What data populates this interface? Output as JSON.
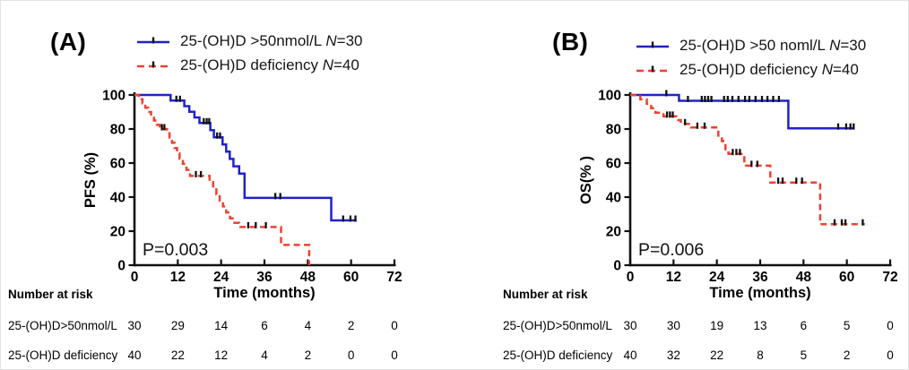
{
  "colors": {
    "blue": "#2121c8",
    "red": "#ee4130",
    "axis": "#111111",
    "censor": "#101010"
  },
  "chart_data": [
    {
      "type": "line",
      "panel_label": "(A)",
      "p_value": "P=0.003",
      "xlabel": "Time (months)",
      "ylabel": "PFS (%)",
      "xlim": [
        0,
        72
      ],
      "ylim": [
        0,
        100
      ],
      "x_ticks": [
        0,
        12,
        24,
        36,
        48,
        60,
        72
      ],
      "y_ticks": [
        0,
        20,
        40,
        60,
        80,
        100
      ],
      "legend": [
        {
          "label": "25-(OH)D >50nmol/L",
          "n_var": "N",
          "n_value": "=30",
          "color": "#2121c8",
          "dashed": false
        },
        {
          "label": "25-(OH)D deficiency",
          "n_var": "N",
          "n_value": "=40",
          "color": "#ee4130",
          "dashed": true
        }
      ],
      "series": [
        {
          "name": "25-(OH)D >50nmol/L",
          "color": "#2121c8",
          "dashed": false,
          "start": [
            0,
            100
          ],
          "steps": [
            [
              10,
              96.7
            ],
            [
              13.8,
              93.4
            ],
            [
              15.2,
              90.1
            ],
            [
              16.6,
              86.8
            ],
            [
              18,
              83.5
            ],
            [
              21,
              79.3
            ],
            [
              22,
              75.1
            ],
            [
              24.4,
              70.9
            ],
            [
              25.4,
              66.7
            ],
            [
              26.4,
              62.4
            ],
            [
              27.4,
              58.1
            ],
            [
              29,
              53.8
            ],
            [
              30.5,
              39.5
            ],
            [
              54.5,
              26.3
            ]
          ],
          "end": 61.5,
          "censors": [
            [
              11.6,
              96.7
            ],
            [
              12.6,
              96.7
            ],
            [
              19.2,
              83.5
            ],
            [
              20,
              83.5
            ],
            [
              20.7,
              83.5
            ],
            [
              22.9,
              75.1
            ],
            [
              23.7,
              75.1
            ],
            [
              39,
              39.5
            ],
            [
              40.4,
              39.5
            ],
            [
              57.8,
              26.3
            ],
            [
              59.8,
              26.3
            ],
            [
              61.2,
              26.3
            ]
          ]
        },
        {
          "name": "25-(OH)D deficiency",
          "color": "#ee4130",
          "dashed": true,
          "start": [
            0,
            100
          ],
          "steps": [
            [
              1.2,
              97.5
            ],
            [
              2.2,
              95
            ],
            [
              3,
              92.5
            ],
            [
              3.8,
              90
            ],
            [
              4.6,
              87.5
            ],
            [
              5.4,
              85
            ],
            [
              6.2,
              82.5
            ],
            [
              7,
              80
            ],
            [
              9,
              77.5
            ],
            [
              9.7,
              75
            ],
            [
              10.4,
              71.9
            ],
            [
              11.1,
              68.8
            ],
            [
              11.8,
              65.7
            ],
            [
              12.5,
              62.6
            ],
            [
              13.4,
              59.5
            ],
            [
              14.4,
              56
            ],
            [
              15.4,
              52.4
            ],
            [
              20.8,
              48.8
            ],
            [
              21.8,
              45.2
            ],
            [
              22.7,
              41.6
            ],
            [
              23.6,
              38
            ],
            [
              24.5,
              34.5
            ],
            [
              25.4,
              31
            ],
            [
              26.5,
              27.5
            ],
            [
              27.7,
              24.9
            ],
            [
              29,
              22.4
            ],
            [
              40.6,
              11.9
            ],
            [
              48.4,
              0
            ]
          ],
          "end": 48.4,
          "censors": [
            [
              7.6,
              80
            ],
            [
              8.3,
              80
            ],
            [
              17,
              52.4
            ],
            [
              18.4,
              52.4
            ],
            [
              31.5,
              22.4
            ],
            [
              33.6,
              22.4
            ],
            [
              36.4,
              22.4
            ]
          ]
        }
      ],
      "risk_table": {
        "title": "Number at risk",
        "rows": [
          {
            "label": "25-(OH)D>50nmol/L",
            "counts": [
              30,
              29,
              14,
              6,
              4,
              2,
              0
            ]
          },
          {
            "label": "25-(OH)D deficiency",
            "counts": [
              40,
              22,
              12,
              4,
              2,
              0,
              0
            ]
          }
        ]
      }
    },
    {
      "type": "line",
      "panel_label": "(B)",
      "p_value": "P=0.006",
      "xlabel": "Time (months)",
      "ylabel": "OS(% )",
      "xlim": [
        0,
        72
      ],
      "ylim": [
        0,
        100
      ],
      "x_ticks": [
        0,
        12,
        24,
        36,
        48,
        60,
        72
      ],
      "y_ticks": [
        0,
        20,
        40,
        60,
        80,
        100
      ],
      "legend": [
        {
          "label": "25-(OH)D >50 noml/L",
          "n_var": "N",
          "n_value": "=30",
          "color": "#2121c8",
          "dashed": false
        },
        {
          "label": "25-(OH)D deficiency",
          "n_var": "N",
          "n_value": "=40",
          "color": "#ee4130",
          "dashed": true
        }
      ],
      "series": [
        {
          "name": "25-(OH)D >50 noml/L",
          "color": "#2121c8",
          "dashed": false,
          "start": [
            0,
            100
          ],
          "steps": [
            [
              13.5,
              96.6
            ],
            [
              43.8,
              80.4
            ]
          ],
          "end": 62,
          "censors": [
            [
              10,
              100
            ],
            [
              16,
              96.6
            ],
            [
              19.8,
              96.6
            ],
            [
              20.7,
              96.6
            ],
            [
              21.6,
              96.6
            ],
            [
              22.5,
              96.6
            ],
            [
              26,
              96.6
            ],
            [
              27,
              96.6
            ],
            [
              28.3,
              96.6
            ],
            [
              30,
              96.6
            ],
            [
              31.8,
              96.6
            ],
            [
              33,
              96.6
            ],
            [
              34.7,
              96.6
            ],
            [
              36.5,
              96.6
            ],
            [
              38,
              96.6
            ],
            [
              39.6,
              96.6
            ],
            [
              41.2,
              96.6
            ],
            [
              57.6,
              80.4
            ],
            [
              59.8,
              80.4
            ],
            [
              61,
              80.4
            ],
            [
              61.9,
              80.4
            ]
          ]
        },
        {
          "name": "25-(OH)D deficiency",
          "color": "#ee4130",
          "dashed": true,
          "start": [
            0,
            100
          ],
          "steps": [
            [
              2.8,
              97.4
            ],
            [
              4.6,
              94.8
            ],
            [
              5.8,
              92.2
            ],
            [
              7,
              89.6
            ],
            [
              9.2,
              87.4
            ],
            [
              12.8,
              85.2
            ],
            [
              14,
              83
            ],
            [
              16.8,
              80.9
            ],
            [
              24.4,
              76.1
            ],
            [
              25.4,
              72.9
            ],
            [
              26.4,
              68.1
            ],
            [
              27.2,
              65.4
            ],
            [
              31.6,
              58.5
            ],
            [
              38.8,
              48.6
            ],
            [
              52.6,
              24.1
            ]
          ],
          "end": 65,
          "censors": [
            [
              10.2,
              87.4
            ],
            [
              11,
              87.4
            ],
            [
              11.8,
              87.4
            ],
            [
              15.2,
              83
            ],
            [
              18.6,
              80.9
            ],
            [
              20.6,
              80.9
            ],
            [
              28.4,
              65.4
            ],
            [
              29.4,
              65.4
            ],
            [
              30.4,
              65.4
            ],
            [
              33.6,
              58.5
            ],
            [
              35.2,
              58.5
            ],
            [
              41,
              48.6
            ],
            [
              42.2,
              48.6
            ],
            [
              46,
              48.6
            ],
            [
              47.6,
              48.6
            ],
            [
              56.6,
              24.1
            ],
            [
              58.6,
              24.1
            ],
            [
              59.6,
              24.1
            ],
            [
              64.4,
              24.1
            ]
          ]
        }
      ],
      "risk_table": {
        "title": "Number at risk",
        "rows": [
          {
            "label": "25-(OH)D>50nmol/L",
            "counts": [
              30,
              30,
              19,
              13,
              6,
              5,
              0
            ]
          },
          {
            "label": "25-(OH)D deficiency",
            "counts": [
              40,
              32,
              22,
              8,
              5,
              2,
              0
            ]
          }
        ]
      }
    }
  ]
}
